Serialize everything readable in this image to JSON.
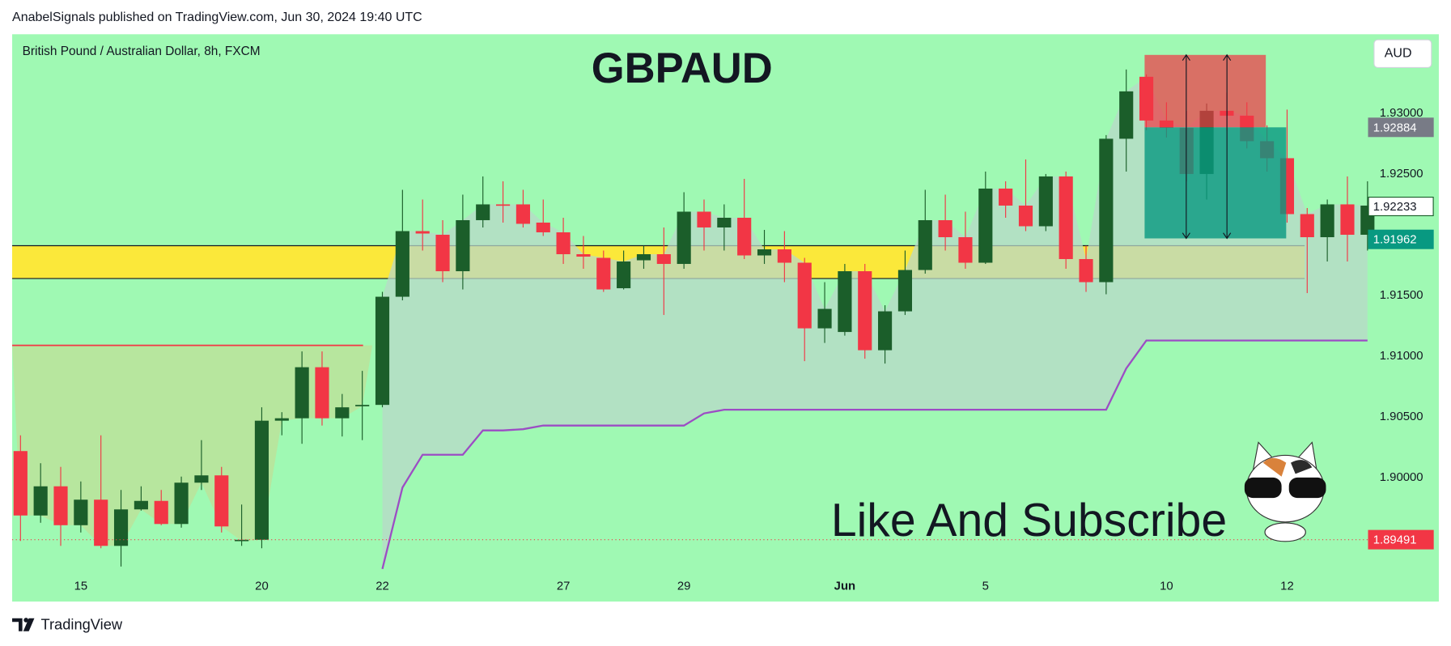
{
  "chart_data": {
    "type": "candlestick",
    "header": "AnabelSignals published on TradingView.com, Jun 30, 2024 19:40 UTC",
    "subtitle": "British Pound / Australian Dollar, 8h, FXCM",
    "title": "GBPAUD",
    "currency": "AUD",
    "annotation": "Like And Subscribe",
    "footer": "TradingView",
    "categories": [
      null,
      null,
      null,
      "15",
      null,
      null,
      null,
      null,
      null,
      null,
      null,
      null,
      "20",
      null,
      null,
      null,
      null,
      null,
      "22",
      null,
      null,
      null,
      null,
      null,
      null,
      null,
      null,
      "27",
      null,
      null,
      null,
      null,
      null,
      "29",
      null,
      null,
      null,
      null,
      null,
      null,
      null,
      "Jun",
      null,
      null,
      null,
      null,
      null,
      null,
      "5",
      null,
      null,
      null,
      null,
      null,
      null,
      null,
      null,
      "10",
      null,
      null,
      null,
      null,
      null,
      "12",
      null,
      null,
      null,
      null
    ],
    "open": [
      1.9022,
      1.8969,
      1.8993,
      1.8961,
      1.8982,
      1.8944,
      1.8974,
      1.8981,
      1.8962,
      1.8996,
      1.9002,
      1.8948,
      1.8949,
      1.9047,
      1.9049,
      1.9091,
      1.9049,
      1.9059,
      1.906,
      1.9149,
      1.9203,
      1.92,
      1.917,
      1.9212,
      1.9225,
      1.9225,
      1.921,
      1.9202,
      1.9184,
      1.9181,
      1.9156,
      1.9179,
      1.9184,
      1.9176,
      1.9219,
      1.9206,
      1.9214,
      1.9183,
      1.9188,
      1.9177,
      1.9123,
      1.912,
      1.917,
      1.9105,
      1.9137,
      1.9171,
      1.9212,
      1.9198,
      1.9177,
      1.9238,
      1.9224,
      1.9207,
      1.9248,
      1.918,
      1.9161,
      1.9279,
      1.933,
      1.9294,
      1.9288,
      1.925,
      1.9302,
      1.9298,
      1.9277,
      1.9263,
      1.9217,
      1.9198,
      1.9225,
      1.92
    ],
    "high": [
      1.9035,
      1.9012,
      1.9009,
      1.8997,
      1.9035,
      1.899,
      1.8993,
      1.899,
      1.9001,
      1.9031,
      1.9009,
      1.8978,
      1.9058,
      1.9054,
      1.9104,
      1.9104,
      1.9069,
      1.9088,
      1.9153,
      1.9237,
      1.9229,
      1.9212,
      1.9233,
      1.9248,
      1.9244,
      1.9237,
      1.9229,
      1.9214,
      1.9199,
      1.9187,
      1.9187,
      1.9191,
      1.9206,
      1.9235,
      1.9229,
      1.9225,
      1.9246,
      1.9204,
      1.9203,
      1.9181,
      1.9161,
      1.9176,
      1.9176,
      1.9142,
      1.9187,
      1.9237,
      1.9233,
      1.9219,
      1.9252,
      1.9244,
      1.9262,
      1.925,
      1.9252,
      1.9191,
      1.9282,
      1.9336,
      1.9332,
      1.9309,
      1.9302,
      1.9308,
      1.9317,
      1.9309,
      1.929,
      1.9303,
      1.9222,
      1.9229,
      1.9248,
      1.9244
    ],
    "low": [
      1.8948,
      1.8963,
      1.8944,
      1.8955,
      1.8942,
      1.8927,
      1.8973,
      1.8961,
      1.8959,
      1.899,
      1.8955,
      1.8944,
      1.8942,
      1.9035,
      1.9028,
      1.9043,
      1.9034,
      1.9031,
      1.9058,
      1.9146,
      1.9187,
      1.9161,
      1.9155,
      1.9206,
      1.921,
      1.9206,
      1.9199,
      1.9176,
      1.9172,
      1.9153,
      1.9155,
      1.9172,
      1.9134,
      1.9172,
      1.9187,
      1.9187,
      1.918,
      1.9176,
      1.9161,
      1.9096,
      1.9111,
      1.9117,
      1.9098,
      1.9094,
      1.9134,
      1.9168,
      1.9187,
      1.9172,
      1.9176,
      1.9214,
      1.9203,
      1.9203,
      1.9172,
      1.9153,
      1.9151,
      1.9252,
      1.9286,
      1.928,
      1.9244,
      1.9229,
      1.9286,
      1.9271,
      1.9252,
      1.921,
      1.9152,
      1.9178,
      1.9178,
      1.9187
    ],
    "close": [
      1.8969,
      1.8993,
      1.8961,
      1.8982,
      1.8944,
      1.8974,
      1.8981,
      1.8962,
      1.8996,
      1.9002,
      1.896,
      1.8949,
      1.9047,
      1.9049,
      1.9091,
      1.9049,
      1.9058,
      1.906,
      1.9149,
      1.9203,
      1.9201,
      1.917,
      1.9212,
      1.9225,
      1.9224,
      1.9209,
      1.9202,
      1.9184,
      1.9182,
      1.9155,
      1.9178,
      1.9184,
      1.9176,
      1.9219,
      1.9206,
      1.9214,
      1.9183,
      1.9188,
      1.9177,
      1.9123,
      1.9139,
      1.917,
      1.9105,
      1.9137,
      1.9171,
      1.9212,
      1.9198,
      1.9177,
      1.9238,
      1.9224,
      1.9207,
      1.9248,
      1.918,
      1.9161,
      1.9279,
      1.9318,
      1.9294,
      1.9288,
      1.925,
      1.9302,
      1.9298,
      1.9277,
      1.9263,
      1.9217,
      1.9198,
      1.9225,
      1.92,
      1.9224
    ],
    "up_color": "#1b5e2a",
    "down_color": "#f23645",
    "stop_line": [
      null,
      null,
      null,
      null,
      null,
      null,
      null,
      null,
      null,
      null,
      null,
      null,
      null,
      null,
      null,
      null,
      null,
      null,
      1.8925,
      1.8992,
      1.9019,
      1.9019,
      1.9019,
      1.9039,
      1.9039,
      1.904,
      1.9043,
      1.9043,
      1.9043,
      1.9043,
      1.9043,
      1.9043,
      1.9043,
      1.9043,
      1.9053,
      1.9056,
      1.9056,
      1.9056,
      1.9056,
      1.9056,
      1.9056,
      1.9056,
      1.9056,
      1.9056,
      1.9056,
      1.9056,
      1.9056,
      1.9056,
      1.9056,
      1.9056,
      1.9056,
      1.9056,
      1.9056,
      1.9056,
      1.9056,
      1.909,
      1.9113,
      1.9113,
      1.9113,
      1.9113,
      1.9113,
      1.9113,
      1.9113,
      1.9113,
      1.9113,
      1.9113,
      1.9113,
      1.9113
    ],
    "stop_line_color": "#9c4dc4",
    "zone": {
      "low": 1.9164,
      "high": 1.9191,
      "color": "#fbe83a"
    },
    "resistance": 1.9109,
    "resistance_color": "#f23645",
    "position": {
      "stop": 1.9348,
      "entry": 1.92884,
      "target": 1.9197
    },
    "price_labels": [
      {
        "value": 1.92884,
        "label": "1.92884",
        "color": "#787b86"
      },
      {
        "value": 1.92233,
        "label": "1.92233",
        "color": "#ffffff"
      },
      {
        "value": 1.91962,
        "label": "1.91962",
        "color": "#089981"
      },
      {
        "value": 1.89491,
        "label": "1.89491",
        "color": "#f23645"
      }
    ],
    "ylim": [
      1.8921,
      1.9365
    ],
    "yticks": [
      {
        "value": 1.93,
        "label": "1.93000"
      },
      {
        "value": 1.925,
        "label": "1.92500"
      },
      {
        "value": 1.915,
        "label": "1.91500"
      },
      {
        "value": 1.91,
        "label": "1.91000"
      },
      {
        "value": 1.905,
        "label": "1.90500"
      },
      {
        "value": 1.9,
        "label": "1.90000"
      }
    ],
    "grid": false
  }
}
